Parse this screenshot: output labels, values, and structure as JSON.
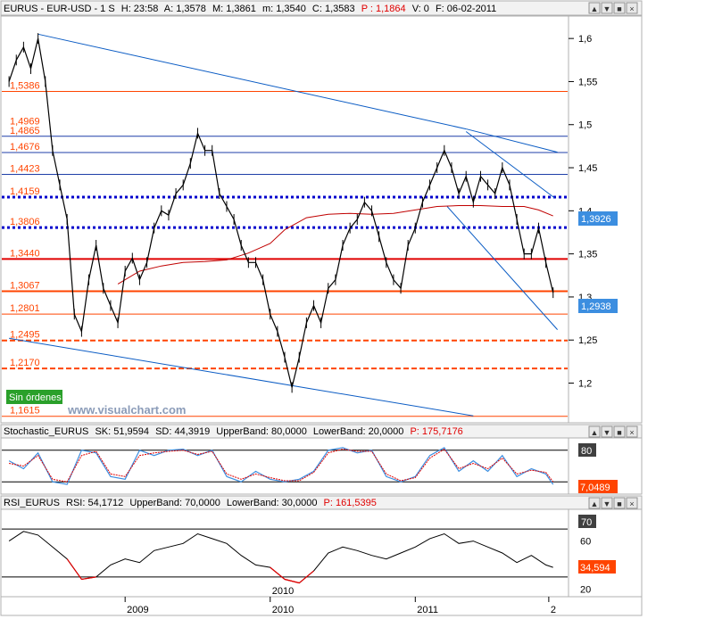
{
  "colors": {
    "price": "#000000",
    "blue_line": "#0b5cc4",
    "orange": "#ff4400",
    "red": "#e00000",
    "dotted_blue": "#0000cc",
    "dark_red_ma": "#c00000",
    "stoch_k": "#3c8ee0",
    "stoch_d": "#e00000",
    "badge_blue": "#3c8ee0",
    "badge_orange": "#ff4400",
    "badge_dark": "#404040",
    "green_badge": "#2aa02a"
  },
  "main": {
    "header": {
      "symbol": "EURUS - EUR-USD - 1 S",
      "h": "H: 23:58",
      "a": "A: 1,3578",
      "m": "M: 1,3861",
      "mm": "m: 1,3540",
      "c": "C: 1,3583",
      "p": "P : 1,1864",
      "v": "V: 0",
      "f": "F: 06-02-2011"
    },
    "badge_upper": "1,3926",
    "badge_lower": "1,2938",
    "orders": "Sin órdenes",
    "watermark": "www.visualchart.com",
    "window_buttons": [
      "▲",
      "▼",
      "■",
      "×"
    ]
  },
  "stoch": {
    "header": {
      "name": "Stochastic_EURUS",
      "sk": "SK: 51,9594",
      "sd": "SD: 44,3919",
      "ub": "UpperBand: 80,0000",
      "lb": "LowerBand: 20,0000",
      "p": "P: 175,7176"
    },
    "badge_top": "80",
    "badge_value": "7,0489"
  },
  "rsi": {
    "header": {
      "name": "RSI_EURUS",
      "rsi": "RSI: 54,1712",
      "ub": "UpperBand: 70,0000",
      "lb": "LowerBand: 30,0000",
      "p": "P: 161,5395"
    },
    "badge_top": "70",
    "badge_value": "34,594"
  },
  "chart_data": [
    {
      "type": "candlestick",
      "y_ticks": [
        "1,6",
        "1,55",
        "1,5",
        "1,45",
        "1,4",
        "1,35",
        "1,3",
        "1,25",
        "1,2"
      ],
      "y_tick_values": [
        1.6,
        1.55,
        1.5,
        1.45,
        1.4,
        1.35,
        1.3,
        1.25,
        1.2
      ],
      "ylim": [
        1.155,
        1.625
      ],
      "x_ticks": [
        "2009",
        "2010",
        "2011",
        "2"
      ],
      "x_tick_values": [
        2009.0,
        2010.0,
        2011.0,
        2011.92
      ],
      "xlim": [
        2008.15,
        2012.05
      ],
      "year_marker_2010": "2010",
      "levels": [
        {
          "label": "1,5386",
          "value": 1.5386,
          "style": "orange-thin"
        },
        {
          "label": "1,4969",
          "value": 1.4969,
          "style": "none"
        },
        {
          "label": "1,4865",
          "value": 1.4865,
          "style": "blue-thin"
        },
        {
          "label": "1,4676",
          "value": 1.4676,
          "style": "blue-thin"
        },
        {
          "label": "1,4423",
          "value": 1.4423,
          "style": "blue-thin"
        },
        {
          "label": "1,4159",
          "value": 1.4159,
          "style": "blue-dotted"
        },
        {
          "label": "1,3806",
          "value": 1.3806,
          "style": "blue-dotted"
        },
        {
          "label": "1,3440",
          "value": 1.344,
          "style": "red-solid"
        },
        {
          "label": "1,3067",
          "value": 1.3067,
          "style": "orange-solid"
        },
        {
          "label": "1,2801",
          "value": 1.2801,
          "style": "orange-thin"
        },
        {
          "label": "1,2495",
          "value": 1.2495,
          "style": "orange-dashed"
        },
        {
          "label": "1,2170",
          "value": 1.217,
          "style": "orange-dashed"
        },
        {
          "label": "1,1615",
          "value": 1.1615,
          "style": "orange-thin"
        }
      ],
      "trendlines": [
        {
          "x": [
            2008.4,
            2011.35
          ],
          "y": [
            1.605,
            1.495
          ]
        },
        {
          "x": [
            2011.35,
            2011.98
          ],
          "y": [
            1.495,
            1.468
          ]
        },
        {
          "x": [
            2011.35,
            2011.96
          ],
          "y": [
            1.492,
            1.415
          ]
        },
        {
          "x": [
            2011.22,
            2011.98
          ],
          "y": [
            1.405,
            1.262
          ]
        },
        {
          "x": [
            2008.2,
            2011.4
          ],
          "y": [
            1.252,
            1.162
          ]
        }
      ],
      "ma_series": {
        "x": [
          2008.95,
          2009.1,
          2009.25,
          2009.4,
          2009.55,
          2009.7,
          2009.85,
          2010.0,
          2010.1,
          2010.25,
          2010.4,
          2010.55,
          2010.7,
          2010.85,
          2011.0,
          2011.15,
          2011.3,
          2011.45,
          2011.6,
          2011.75,
          2011.85,
          2011.95
        ],
        "y": [
          1.315,
          1.33,
          1.336,
          1.34,
          1.341,
          1.343,
          1.351,
          1.362,
          1.378,
          1.392,
          1.396,
          1.397,
          1.396,
          1.397,
          1.401,
          1.405,
          1.406,
          1.406,
          1.405,
          1.405,
          1.401,
          1.394
        ]
      },
      "price_series": {
        "x": [
          2008.2,
          2008.25,
          2008.3,
          2008.35,
          2008.4,
          2008.45,
          2008.5,
          2008.55,
          2008.6,
          2008.65,
          2008.7,
          2008.75,
          2008.8,
          2008.85,
          2008.9,
          2008.95,
          2009.0,
          2009.05,
          2009.1,
          2009.15,
          2009.2,
          2009.25,
          2009.3,
          2009.35,
          2009.4,
          2009.45,
          2009.5,
          2009.55,
          2009.6,
          2009.65,
          2009.7,
          2009.75,
          2009.8,
          2009.85,
          2009.9,
          2009.95,
          2010.0,
          2010.05,
          2010.1,
          2010.15,
          2010.2,
          2010.25,
          2010.3,
          2010.35,
          2010.4,
          2010.45,
          2010.5,
          2010.55,
          2010.6,
          2010.65,
          2010.7,
          2010.75,
          2010.8,
          2010.85,
          2010.9,
          2010.95,
          2011.0,
          2011.05,
          2011.1,
          2011.15,
          2011.2,
          2011.25,
          2011.3,
          2011.35,
          2011.4,
          2011.45,
          2011.5,
          2011.55,
          2011.6,
          2011.65,
          2011.7,
          2011.75,
          2011.8,
          2011.85,
          2011.9,
          2011.95
        ],
        "y": [
          1.55,
          1.575,
          1.59,
          1.565,
          1.6,
          1.55,
          1.47,
          1.43,
          1.39,
          1.28,
          1.26,
          1.32,
          1.36,
          1.31,
          1.29,
          1.27,
          1.33,
          1.345,
          1.32,
          1.34,
          1.38,
          1.4,
          1.395,
          1.42,
          1.43,
          1.455,
          1.49,
          1.47,
          1.47,
          1.42,
          1.405,
          1.39,
          1.36,
          1.34,
          1.34,
          1.32,
          1.28,
          1.26,
          1.23,
          1.195,
          1.23,
          1.27,
          1.29,
          1.27,
          1.31,
          1.32,
          1.36,
          1.38,
          1.39,
          1.41,
          1.4,
          1.37,
          1.34,
          1.32,
          1.31,
          1.36,
          1.38,
          1.41,
          1.43,
          1.45,
          1.47,
          1.45,
          1.42,
          1.44,
          1.41,
          1.44,
          1.43,
          1.42,
          1.45,
          1.43,
          1.39,
          1.35,
          1.35,
          1.38,
          1.34,
          1.305
        ]
      }
    },
    {
      "type": "line",
      "name": "Stochastic",
      "ylim": [
        0,
        100
      ],
      "bands": [
        80,
        20
      ],
      "x": [
        2008.2,
        2008.3,
        2008.4,
        2008.5,
        2008.6,
        2008.7,
        2008.8,
        2008.9,
        2009.0,
        2009.1,
        2009.2,
        2009.3,
        2009.4,
        2009.5,
        2009.6,
        2009.7,
        2009.8,
        2009.9,
        2010.0,
        2010.1,
        2010.2,
        2010.3,
        2010.4,
        2010.5,
        2010.6,
        2010.7,
        2010.8,
        2010.9,
        2011.0,
        2011.1,
        2011.2,
        2011.3,
        2011.4,
        2011.5,
        2011.6,
        2011.7,
        2011.8,
        2011.9,
        2011.95
      ],
      "sk": [
        60,
        45,
        75,
        20,
        15,
        80,
        75,
        30,
        25,
        80,
        70,
        80,
        82,
        70,
        80,
        30,
        20,
        40,
        25,
        20,
        25,
        40,
        80,
        85,
        75,
        80,
        30,
        20,
        30,
        70,
        85,
        40,
        60,
        40,
        70,
        30,
        45,
        35,
        15
      ],
      "sd": [
        55,
        50,
        70,
        25,
        20,
        70,
        78,
        35,
        30,
        70,
        75,
        78,
        80,
        72,
        78,
        35,
        25,
        35,
        28,
        22,
        22,
        38,
        75,
        82,
        78,
        78,
        35,
        22,
        28,
        65,
        82,
        45,
        55,
        45,
        65,
        35,
        42,
        38,
        20
      ]
    },
    {
      "type": "line",
      "name": "RSI",
      "ylim": [
        15,
        85
      ],
      "bands": [
        70,
        30
      ],
      "y_ticks": [
        "60",
        "40",
        "20"
      ],
      "y_tick_values": [
        60,
        40,
        20
      ],
      "x": [
        2008.2,
        2008.3,
        2008.4,
        2008.5,
        2008.6,
        2008.7,
        2008.8,
        2008.9,
        2009.0,
        2009.1,
        2009.2,
        2009.3,
        2009.4,
        2009.5,
        2009.6,
        2009.7,
        2009.8,
        2009.9,
        2010.0,
        2010.1,
        2010.2,
        2010.3,
        2010.4,
        2010.5,
        2010.6,
        2010.7,
        2010.8,
        2010.9,
        2011.0,
        2011.1,
        2011.2,
        2011.3,
        2011.4,
        2011.5,
        2011.6,
        2011.7,
        2011.8,
        2011.9,
        2011.95
      ],
      "values": [
        60,
        68,
        65,
        55,
        45,
        28,
        30,
        40,
        45,
        42,
        52,
        55,
        58,
        66,
        62,
        58,
        48,
        40,
        38,
        28,
        25,
        35,
        50,
        55,
        52,
        48,
        45,
        50,
        55,
        62,
        66,
        58,
        60,
        55,
        50,
        42,
        48,
        40,
        38
      ]
    }
  ]
}
